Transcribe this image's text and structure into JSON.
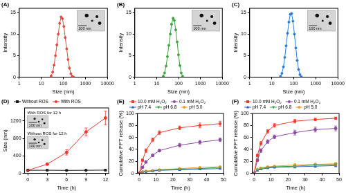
{
  "chart_data": [
    {
      "type": "line",
      "title": "(A)",
      "x_label": "Size (nm)",
      "y_label": "Intensity",
      "log": "x",
      "xlim": [
        1,
        10000
      ],
      "xticks": [
        1,
        10,
        100,
        1000,
        10000
      ],
      "ylim": [
        0,
        16
      ],
      "yticks": [
        0,
        5,
        10,
        15
      ],
      "grid": false,
      "annotations": [
        {
          "scale_bar": "100 nm"
        }
      ],
      "x": [
        28,
        33,
        38,
        44,
        51,
        59,
        68,
        79,
        91,
        106,
        122,
        142,
        164,
        190,
        220,
        255,
        295
      ],
      "series": [
        {
          "color": "#e8453c",
          "marker": "circle",
          "values": [
            0.3,
            1.2,
            2.8,
            5,
            7.5,
            10,
            12.5,
            14,
            13.6,
            11.8,
            9.2,
            6.6,
            4.1,
            2.1,
            0.8,
            0.2,
            0
          ]
        }
      ]
    },
    {
      "type": "line",
      "title": "(B)",
      "x_label": "Size (nm)",
      "y_label": "Intensity",
      "log": "x",
      "xlim": [
        1,
        10000
      ],
      "xticks": [
        1,
        10,
        100,
        1000,
        10000
      ],
      "ylim": [
        0,
        16
      ],
      "yticks": [
        0,
        5,
        10,
        15
      ],
      "grid": false,
      "annotations": [
        {
          "scale_bar": "100 nm"
        }
      ],
      "x": [
        20,
        23,
        27,
        31,
        36,
        42,
        48,
        56,
        64,
        74,
        86,
        99,
        115,
        133,
        154
      ],
      "series": [
        {
          "color": "#3aa63a",
          "marker": "circle",
          "values": [
            0.2,
            1.0,
            2.6,
            4.8,
            7.4,
            10,
            12.3,
            13.7,
            13.2,
            11,
            8.2,
            5.2,
            2.7,
            1,
            0.2
          ]
        }
      ]
    },
    {
      "type": "line",
      "title": "(C)",
      "x_label": "Size (nm)",
      "y_label": "Intensity",
      "log": "x",
      "xlim": [
        1,
        10000
      ],
      "xticks": [
        1,
        10,
        100,
        1000,
        10000
      ],
      "ylim": [
        0,
        16
      ],
      "yticks": [
        0,
        5,
        10,
        15
      ],
      "grid": false,
      "annotations": [
        {
          "scale_bar": "100 nm"
        }
      ],
      "x": [
        25,
        29,
        34,
        39,
        45,
        52,
        60,
        69,
        80,
        92,
        107,
        124,
        143,
        165,
        190,
        220
      ],
      "series": [
        {
          "color": "#2b7bd6",
          "marker": "circle",
          "values": [
            0.2,
            0.9,
            2.4,
            4.6,
            7.3,
            10.2,
            12.8,
            14.6,
            14.8,
            13,
            10,
            6.8,
            3.9,
            1.8,
            0.6,
            0.1
          ]
        }
      ]
    },
    {
      "type": "line",
      "title": "(D)",
      "x_label": "Time (h)",
      "y_label": "Size (nm)",
      "xlim": [
        -0.5,
        12.5
      ],
      "xticks": [
        0,
        3,
        6,
        9,
        12
      ],
      "ylim": [
        0,
        1500
      ],
      "yticks": [
        0,
        400,
        800,
        1200
      ],
      "grid": false,
      "legend": "top",
      "annotations": [
        {
          "text": "With ROS for 12 h",
          "scale_bar": "100 nm"
        },
        {
          "text": "Without ROS for 12 h",
          "scale_bar": "100 nm"
        }
      ],
      "x": [
        0,
        3,
        6,
        9,
        12
      ],
      "series": [
        {
          "name": "Without ROS",
          "color": "#1a1a1a",
          "marker": "square",
          "values": [
            70,
            72,
            68,
            71,
            74
          ],
          "errors": [
            5,
            5,
            5,
            5,
            6
          ]
        },
        {
          "name": "With ROS",
          "color": "#e8392b",
          "marker": "circle",
          "values": [
            70,
            210,
            480,
            950,
            1270
          ],
          "errors": [
            8,
            20,
            60,
            90,
            160
          ]
        }
      ]
    },
    {
      "type": "line",
      "title": "(E)",
      "x_label": "Time (h)",
      "y_label": "Cumulative PPT release (%)",
      "xlim": [
        -1,
        50
      ],
      "xticks": [
        0,
        10,
        20,
        30,
        40,
        50
      ],
      "ylim": [
        0,
        100
      ],
      "yticks": [
        0,
        20,
        40,
        60,
        80,
        100
      ],
      "grid": false,
      "legend": "top",
      "x": [
        0,
        2,
        4,
        8,
        12,
        24,
        36,
        48
      ],
      "series": [
        {
          "name": "10.0 mM H₂O₂",
          "color": "#ee3a2c",
          "marker": "square",
          "values": [
            0,
            22,
            38,
            56,
            68,
            76,
            80,
            83
          ],
          "errors": [
            0,
            2,
            3,
            3,
            3,
            3,
            4,
            4
          ]
        },
        {
          "name": "0.1 mM H₂O₂",
          "color": "#8b4aa0",
          "marker": "circle",
          "values": [
            0,
            10,
            19,
            30,
            38,
            47,
            52,
            56
          ],
          "errors": [
            0,
            1,
            2,
            2,
            2,
            3,
            3,
            3
          ]
        },
        {
          "name": "pH 7.4",
          "color": "#2a62c9",
          "marker": "triangle",
          "values": [
            0,
            2,
            3,
            4,
            5,
            6,
            7,
            8
          ],
          "errors": [
            0,
            1,
            1,
            1,
            1,
            1,
            1,
            1
          ]
        },
        {
          "name": "pH 6.8",
          "color": "#37a844",
          "marker": "triangle_down",
          "values": [
            0,
            2,
            3,
            4,
            6,
            7,
            8,
            10
          ],
          "errors": [
            0,
            1,
            1,
            1,
            1,
            1,
            1,
            1
          ]
        },
        {
          "name": "pH 5.0",
          "color": "#f0a030",
          "marker": "diamond",
          "values": [
            0,
            3,
            4,
            5,
            6,
            8,
            10,
            11
          ],
          "errors": [
            0,
            1,
            1,
            1,
            1,
            1,
            1,
            1
          ]
        }
      ]
    },
    {
      "type": "line",
      "title": "(F)",
      "x_label": "Time (h)",
      "y_label": "Cumulative PPT release (%)",
      "xlim": [
        -1,
        50
      ],
      "xticks": [
        0,
        10,
        20,
        30,
        40,
        50
      ],
      "ylim": [
        0,
        100
      ],
      "yticks": [
        0,
        20,
        40,
        60,
        80,
        100
      ],
      "grid": false,
      "legend": "top",
      "x": [
        0,
        2,
        4,
        8,
        12,
        24,
        36,
        48
      ],
      "series": [
        {
          "name": "10.0 mM H₂O₂",
          "color": "#ee3a2c",
          "marker": "square",
          "values": [
            0,
            30,
            50,
            70,
            80,
            87,
            90,
            92
          ],
          "errors": [
            0,
            2,
            3,
            3,
            3,
            3,
            2,
            2
          ]
        },
        {
          "name": "0.1 mM H₂O₂",
          "color": "#8b4aa0",
          "marker": "circle",
          "values": [
            0,
            22,
            38,
            53,
            61,
            68,
            73,
            75
          ],
          "errors": [
            0,
            2,
            3,
            3,
            3,
            4,
            4,
            4
          ]
        },
        {
          "name": "pH 7.4",
          "color": "#2a62c9",
          "marker": "triangle",
          "values": [
            0,
            5,
            7,
            9,
            10,
            11,
            12,
            13
          ],
          "errors": [
            0,
            1,
            1,
            1,
            1,
            2,
            2,
            2
          ]
        },
        {
          "name": "pH 6.8",
          "color": "#37a844",
          "marker": "triangle_down",
          "values": [
            0,
            6,
            8,
            10,
            11,
            12,
            14,
            15
          ],
          "errors": [
            0,
            1,
            1,
            1,
            1,
            2,
            2,
            2
          ]
        },
        {
          "name": "pH 5.0",
          "color": "#f0a030",
          "marker": "diamond",
          "values": [
            0,
            7,
            9,
            11,
            12,
            14,
            15,
            16
          ],
          "errors": [
            0,
            1,
            1,
            1,
            1,
            2,
            2,
            2
          ]
        }
      ]
    }
  ]
}
